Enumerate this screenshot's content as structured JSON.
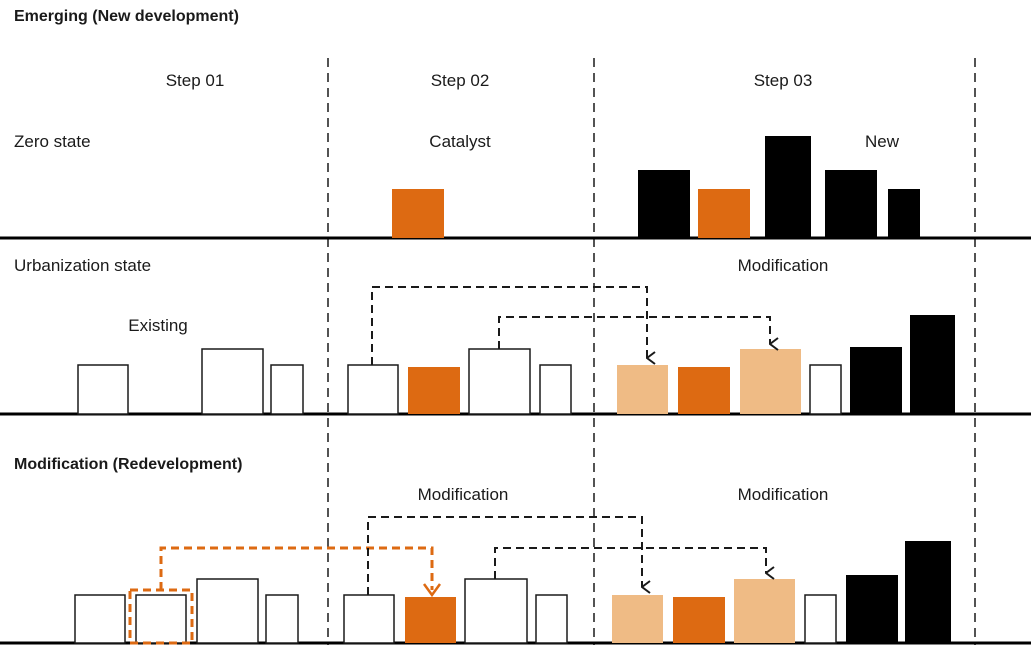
{
  "header": {
    "title": "Emerging (New development)"
  },
  "steps": [
    "Step 01",
    "Step 02",
    "Step 03"
  ],
  "row1": {
    "left": "Zero state",
    "center": "Catalyst",
    "right": "New"
  },
  "row2": {
    "left": "Urbanization state",
    "existing": "Existing",
    "right": "Modification"
  },
  "row3": {
    "left": "Modification (Redevelopment)",
    "center": "Modification",
    "right": "Modification"
  },
  "colors": {
    "catalyst": "#dd6a12",
    "modified": "#efbb85",
    "new": "#000000",
    "existing": "#ffffff",
    "arrow_dark": "#1a1a1a",
    "arrow_orange": "#dd6a12"
  }
}
